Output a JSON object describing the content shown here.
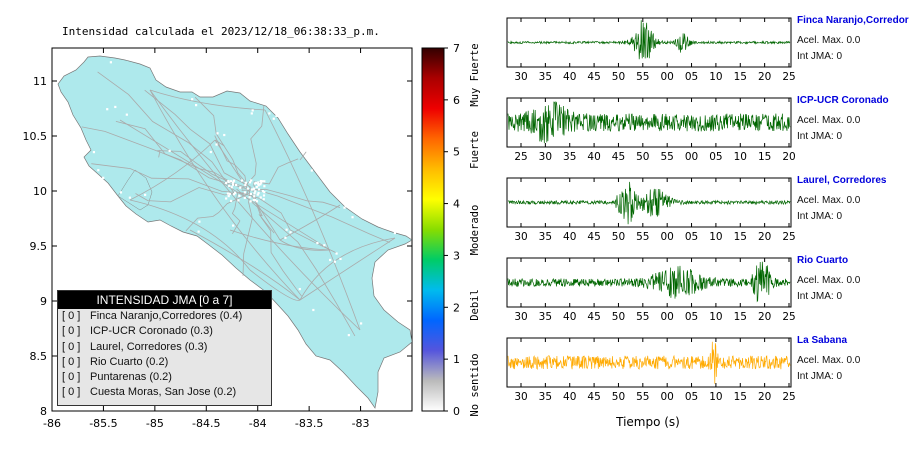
{
  "title": "Intensidad calculada el 2023/12/18_06:38:33_p.m.",
  "map": {
    "x_ticks": [
      "-86",
      "-85.5",
      "-85",
      "-84.5",
      "-84",
      "-83.5",
      "-83"
    ],
    "y_ticks": [
      "11",
      "10.5",
      "10",
      "9.5",
      "9",
      "8.5",
      "8"
    ],
    "land_color": "#aee9ec",
    "xlim": [
      -86,
      -82.5
    ],
    "ylim": [
      8,
      11.3
    ]
  },
  "legend": {
    "header": "INTENSIDAD JMA [0 a 7]",
    "rows": [
      {
        "bracket": "[ 0 ]",
        "text": "Finca Naranjo,Corredores (0.4)"
      },
      {
        "bracket": "[ 0 ]",
        "text": "ICP-UCR Coronado (0.3)"
      },
      {
        "bracket": "[ 0 ]",
        "text": "Laurel, Corredores (0.3)"
      },
      {
        "bracket": "[ 0 ]",
        "text": "Rio Cuarto (0.2)"
      },
      {
        "bracket": "[ 0 ]",
        "text": "Puntarenas (0.2)"
      },
      {
        "bracket": "[ 0 ]",
        "text": "Cuesta Moras, San Jose (0.2)"
      }
    ]
  },
  "colorbar": {
    "ticks": [
      "0",
      "1",
      "2",
      "3",
      "4",
      "5",
      "6",
      "7"
    ],
    "labels": [
      "No sentido",
      "Debil",
      "Moderado",
      "Fuerte",
      "Muy Fuerte"
    ],
    "colors": [
      "#ffffff",
      "#bbbbbb",
      "#5555dd",
      "#0066ff",
      "#00bbee",
      "#00cc66",
      "#88dd00",
      "#ffff00",
      "#ffbb00",
      "#ff6600",
      "#ee0000",
      "#aa0000",
      "#330000"
    ]
  },
  "chart_data": [
    {
      "type": "line",
      "name": "Finca Naranjo,Corredor",
      "color": "#006600",
      "x_ticks": [
        "30",
        "35",
        "40",
        "45",
        "50",
        "55",
        "00",
        "05",
        "10",
        "15",
        "20",
        "25"
      ],
      "accel_max": "Acel. Max. 0.0",
      "jma": "Int JMA: 0",
      "bursts": [
        {
          "center": 0.48,
          "width": 0.035,
          "amp": 1.0
        },
        {
          "center": 0.62,
          "width": 0.02,
          "amp": 0.55
        }
      ],
      "noise": 0.05
    },
    {
      "type": "line",
      "name": "ICP-UCR Coronado",
      "color": "#006600",
      "x_ticks": [
        "25",
        "30",
        "35",
        "40",
        "45",
        "50",
        "55",
        "00",
        "05",
        "10",
        "15",
        "20"
      ],
      "accel_max": "Acel. Max. 0.0",
      "jma": "Int JMA: 0",
      "bursts": [
        {
          "center": 0.15,
          "width": 0.06,
          "amp": 0.7
        }
      ],
      "noise": 0.4
    },
    {
      "type": "line",
      "name": "Laurel, Corredores",
      "color": "#006600",
      "x_ticks": [
        "30",
        "35",
        "40",
        "45",
        "50",
        "55",
        "00",
        "05",
        "10",
        "15",
        "20",
        "25"
      ],
      "accel_max": "Acel. Max. 0.0",
      "jma": "Int JMA: 0",
      "bursts": [
        {
          "center": 0.42,
          "width": 0.03,
          "amp": 1.0
        },
        {
          "center": 0.52,
          "width": 0.05,
          "amp": 0.6
        }
      ],
      "noise": 0.08
    },
    {
      "type": "line",
      "name": "Rio Cuarto",
      "color": "#006600",
      "x_ticks": [
        "30",
        "35",
        "40",
        "45",
        "50",
        "55",
        "00",
        "05",
        "10",
        "15",
        "20",
        "25"
      ],
      "accel_max": "Acel. Max. 0.0",
      "jma": "Int JMA: 0",
      "bursts": [
        {
          "center": 0.6,
          "width": 0.08,
          "amp": 0.6
        },
        {
          "center": 0.9,
          "width": 0.03,
          "amp": 0.9
        }
      ],
      "noise": 0.18
    },
    {
      "type": "line",
      "name": "La Sabana",
      "color": "#ffaa00",
      "x_ticks": [
        "30",
        "35",
        "40",
        "45",
        "50",
        "55",
        "00",
        "05",
        "10",
        "15",
        "20",
        "25"
      ],
      "accel_max": "Acel. Max. 0.0",
      "jma": "Int JMA: 0",
      "bursts": [
        {
          "center": 0.73,
          "width": 0.01,
          "amp": 1.0
        }
      ],
      "noise": 0.3
    }
  ],
  "xlabel": "Tiempo (s)"
}
